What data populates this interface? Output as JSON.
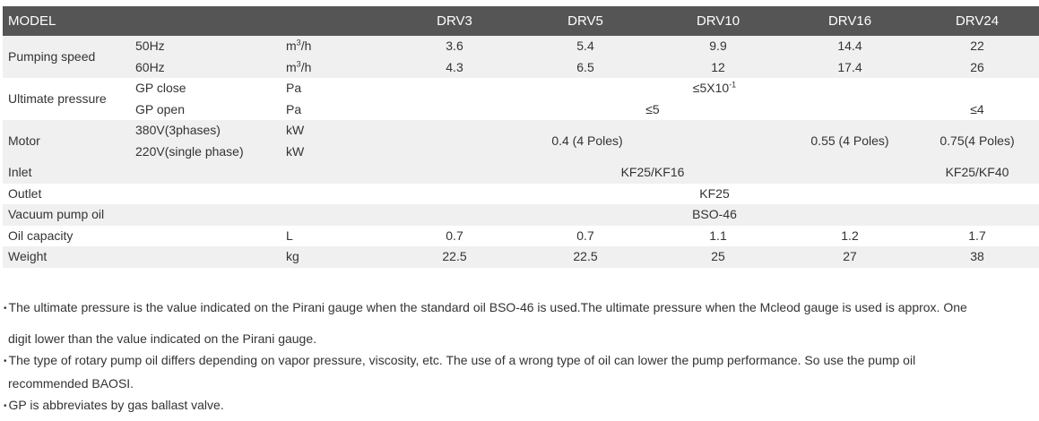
{
  "header": {
    "model": "MODEL",
    "models": [
      "DRV3",
      "DRV5",
      "DRV10",
      "DRV16",
      "DRV24"
    ]
  },
  "rows": {
    "pumping_speed": {
      "label": "Pumping speed",
      "r50": {
        "sub": "50Hz",
        "unit_base": "m",
        "unit_sup": "3",
        "unit_tail": "/h",
        "values": [
          "3.6",
          "5.4",
          "9.9",
          "14.4",
          "22"
        ]
      },
      "r60": {
        "sub": "60Hz",
        "unit_base": "m",
        "unit_sup": "3",
        "unit_tail": "/h",
        "values": [
          "4.3",
          "6.5",
          "12",
          "17.4",
          "26"
        ]
      }
    },
    "ultimate_pressure": {
      "label": "Ultimate pressure",
      "close": {
        "sub": "GP close",
        "unit": "Pa",
        "value_base": "≤5X10",
        "value_sup": "-1"
      },
      "open": {
        "sub": "GP open",
        "unit": "Pa",
        "value_a": "≤5",
        "value_b": "≤4"
      }
    },
    "motor": {
      "label": "Motor",
      "sub1": "380V(3phases)",
      "unit1": "kW",
      "sub2": "220V(single phase)",
      "unit2": "kW",
      "value_a": "0.4 (4 Poles)",
      "value_b": "0.55 (4 Poles)",
      "value_c": "0.75(4 Poles)"
    },
    "inlet": {
      "label": "Inlet",
      "value_a": "KF25/KF16",
      "value_b": "KF25/KF40"
    },
    "outlet": {
      "label": "Outlet",
      "value": "KF25"
    },
    "oil": {
      "label": "Vacuum pump oil",
      "value": "BSO-46"
    },
    "oil_capacity": {
      "label": "Oil capacity",
      "unit": "L",
      "values": [
        "0.7",
        "0.7",
        "1.1",
        "1.2",
        "1.7"
      ]
    },
    "weight": {
      "label": "Weight",
      "unit": "kg",
      "values": [
        "22.5",
        "22.5",
        "25",
        "27",
        "38"
      ]
    }
  },
  "notes": {
    "bullet": "•",
    "n1a": "The ultimate pressure is the value indicated on the Pirani gauge when the standard oil BSO-46 is used.The ultimate pressure when the Mcleod gauge is used is approx. One",
    "n1b": "digit lower than the value indicated on the Pirani gauge.",
    "n2a": "The type of rotary pump oil differs depending on vapor pressure, viscosity, etc. The use of a wrong type of oil can lower the pump performance. So use the pump oil",
    "n2b": "recommended BAOSI.",
    "n3": "GP is abbreviates by gas ballast valve."
  }
}
